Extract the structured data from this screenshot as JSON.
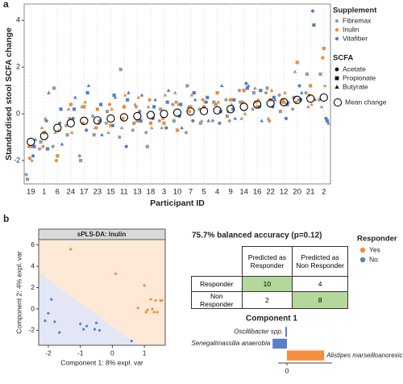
{
  "panels": [
    "a",
    "b"
  ],
  "chart_data": [
    {
      "type": "dot",
      "y_label": "Standardised stool SCFA change",
      "x_label": "Participant ID",
      "categories": [
        "19",
        "1",
        "6",
        "24",
        "17",
        "23",
        "15",
        "11",
        "13",
        "18",
        "3",
        "10",
        "7",
        "5",
        "4",
        "9",
        "14",
        "16",
        "22",
        "12",
        "20",
        "21",
        "2"
      ],
      "ylim": [
        -3,
        4.7
      ],
      "yticks": [
        -2,
        0,
        2,
        4
      ],
      "grid": true,
      "supplement_title": "Supplement",
      "scfa_title": "SCFA",
      "scfa": [
        {
          "name": "Acetate",
          "marker": "circle"
        },
        {
          "name": "Propionate",
          "marker": "square"
        },
        {
          "name": "Butyrate",
          "marker": "triangle"
        }
      ],
      "series": [
        {
          "name": "Fibremax",
          "color": "#9a9a9a",
          "values": [
            [
              -2.6,
              -2.8,
              -1.4
            ],
            [
              -1.5,
              -1.2,
              -0.6
            ],
            [
              -1.4,
              1.1,
              -0.8
            ],
            [
              -0.5,
              -0.9,
              0.2
            ],
            [
              -1.8,
              -2.0,
              0.3
            ],
            [
              -0.1,
              -0.9,
              -0.6
            ],
            [
              -0.4,
              0.1,
              -0.8
            ],
            [
              -1.0,
              1.9,
              -0.6
            ],
            [
              -0.7,
              -0.4,
              0.4
            ],
            [
              -0.8,
              -1.4,
              0.3
            ],
            [
              -0.3,
              0.2,
              -0.6
            ],
            [
              0.4,
              -0.3,
              0.9
            ],
            [
              -0.8,
              1.2,
              0.3
            ],
            [
              0.2,
              -0.4,
              -0.3
            ],
            [
              -0.3,
              0.5,
              0.4
            ],
            [
              0.6,
              -0.1,
              0.1
            ],
            [
              1.0,
              0.5,
              -0.2
            ],
            [
              0.2,
              0.9,
              1.1
            ],
            [
              0.9,
              1.1,
              -0.2
            ],
            [
              0.8,
              0.1,
              0.5
            ],
            [
              0.2,
              0.7,
              1.8
            ],
            [
              0.9,
              1.7,
              0.3
            ],
            [
              0.6,
              1.7,
              0.3
            ]
          ]
        },
        {
          "name": "Inulin",
          "color": "#ef8a3a",
          "values": [
            [
              -1.9,
              -1.4,
              -2.0
            ],
            [
              -1.4,
              -0.8,
              -0.2
            ],
            [
              -2.0,
              -1.8,
              -0.7
            ],
            [
              -0.2,
              0.4,
              -0.8
            ],
            [
              -0.4,
              0.3,
              0.5
            ],
            [
              -0.6,
              0.2,
              -0.4
            ],
            [
              0.4,
              -0.5,
              0.2
            ],
            [
              -0.2,
              0.3,
              0.8
            ],
            [
              0.3,
              -0.3,
              0.7
            ],
            [
              0.6,
              -0.4,
              -0.6
            ],
            [
              -0.2,
              -0.4,
              0.8
            ],
            [
              0.5,
              -0.7,
              0.4
            ],
            [
              0.1,
              0.3,
              0.8
            ],
            [
              0.6,
              0.3,
              0.5
            ],
            [
              0.4,
              0.9,
              0.5
            ],
            [
              -0.3,
              0.6,
              0.4
            ],
            [
              0.5,
              1.0,
              0.0
            ],
            [
              0.5,
              0.3,
              0.6
            ],
            [
              -0.3,
              0.6,
              1.0
            ],
            [
              0.6,
              0.5,
              0.9
            ],
            [
              0.5,
              2.2,
              0.6
            ],
            [
              0.8,
              1.2,
              0.4
            ],
            [
              2.4,
              2.8,
              1.2
            ]
          ]
        },
        {
          "name": "Vitafiber",
          "color": "#4f81c4",
          "values": [
            [
              -1.8,
              -1.4,
              -1.1
            ],
            [
              -0.3,
              -1.5,
              0.9
            ],
            [
              -0.4,
              0.2,
              -1.3
            ],
            [
              -0.2,
              0.2,
              0.7
            ],
            [
              -0.7,
              0.9,
              1.2
            ],
            [
              -0.3,
              0.4,
              -0.9
            ],
            [
              -0.5,
              0.8,
              0.7
            ],
            [
              -1.4,
              0.6,
              0.9
            ],
            [
              0.1,
              -0.3,
              0.8
            ],
            [
              -0.2,
              0.3,
              0.6
            ],
            [
              -0.6,
              0.5,
              1.0
            ],
            [
              -0.1,
              0.4,
              -0.6
            ],
            [
              -0.3,
              0.9,
              0.6
            ],
            [
              0.5,
              0.7,
              -0.3
            ],
            [
              -0.4,
              0.1,
              1.2
            ],
            [
              0.2,
              0.6,
              -0.2
            ],
            [
              1.3,
              1.1,
              1.2
            ],
            [
              0.3,
              1.0,
              -0.3
            ],
            [
              0.3,
              0.7,
              0.6
            ],
            [
              -0.2,
              0.4,
              0.5
            ],
            [
              1.2,
              0.6,
              0.9
            ],
            [
              4.4,
              3.8,
              0.6
            ],
            [
              -0.2,
              -0.3,
              -0.4
            ]
          ]
        }
      ],
      "mean": {
        "name": "Mean change",
        "values": [
          -1.2,
          -0.95,
          -0.6,
          -0.4,
          -0.3,
          -0.28,
          -0.2,
          -0.15,
          -0.1,
          -0.05,
          0.0,
          0.05,
          0.1,
          0.12,
          0.15,
          0.2,
          0.3,
          0.4,
          0.45,
          0.5,
          0.6,
          0.65,
          0.7
        ]
      }
    },
    {
      "type": "scatter",
      "title": "sPLS-DA: Inulin",
      "x_label": "Component 1: 8% expl. var",
      "y_label": "Component 2: 4% expl. var",
      "xlim": [
        -2.3,
        1.65
      ],
      "xticks": [
        -2,
        -1,
        0,
        1
      ],
      "ylim": [
        -3.4,
        6.5
      ],
      "yticks": [
        -2,
        0,
        2,
        4,
        6
      ],
      "legend_title": "Responder",
      "series": [
        {
          "name": "Yes",
          "color": "#f28e3c",
          "x": [
            -1.3,
            0.1,
            0.8,
            1.0,
            1.05,
            1.1,
            1.2,
            1.25,
            1.3,
            1.35,
            1.4,
            1.5,
            1.55
          ],
          "y": [
            5.6,
            3.3,
            0.1,
            2.2,
            -0.3,
            -0.1,
            0.9,
            0.0,
            -0.3,
            0.8,
            -0.3,
            0.8,
            0.8
          ]
        },
        {
          "name": "No",
          "color": "#5b7fc7",
          "x": [
            -2.1,
            -2.0,
            -1.9,
            -1.8,
            -1.65,
            -1.0,
            -0.9,
            -0.8,
            -0.55,
            -0.5,
            -0.4,
            0.6
          ],
          "y": [
            -1.1,
            -0.4,
            0.9,
            -1.2,
            -2.2,
            -1.4,
            -1.9,
            -1.6,
            -1.9,
            -1.3,
            -2.0,
            -3.0
          ]
        }
      ]
    },
    {
      "type": "hbar",
      "title": "Component 1",
      "categories": [
        "Oscillibacter spp.",
        "Senegalimassilia anaerobia",
        "Alistipes marseilloanorexicus"
      ],
      "values": [
        -0.03,
        -0.27,
        0.7
      ],
      "colors": [
        "#5b7fc7",
        "#5b7fc7",
        "#f28e3c"
      ],
      "xlim": [
        -0.5,
        1.0
      ],
      "xticks": [
        0
      ]
    }
  ],
  "table": {
    "title": "75.7% balanced accuracy (p=0.12)",
    "columns": [
      "Predicted as Responder",
      "Predicted as Non Responder"
    ],
    "rows": [
      {
        "label": "Responder",
        "values": [
          10,
          4
        ]
      },
      {
        "label": "Non Responder",
        "values": [
          2,
          8
        ]
      }
    ],
    "highlight_color": "#b4d79a"
  }
}
